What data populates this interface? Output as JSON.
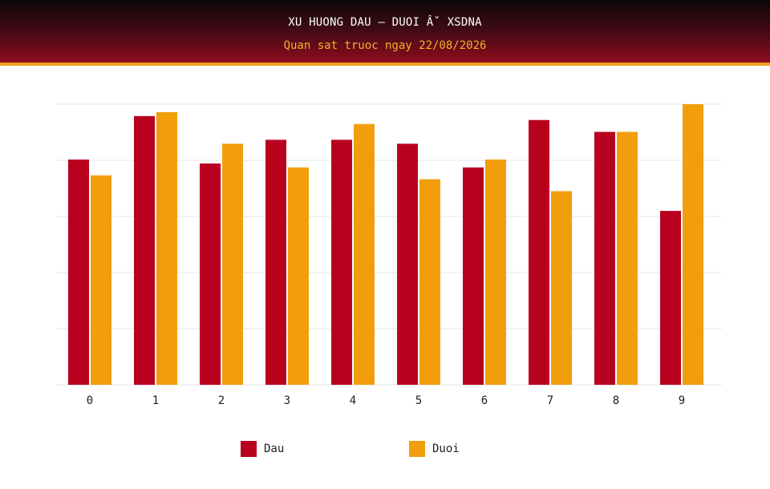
{
  "header": {
    "title": "XU HUONG DAU – DUOI Âˇ XSDNA",
    "subtitle": "Quan sat truoc ngay 22/08/2026"
  },
  "colors": {
    "dau": "#b8001f",
    "duoi": "#f29e0c",
    "grid": "#e6e6e6"
  },
  "chart_data": {
    "type": "bar",
    "categories": [
      "0",
      "1",
      "2",
      "3",
      "4",
      "5",
      "6",
      "7",
      "8",
      "9"
    ],
    "series": [
      {
        "name": "Dau",
        "values": [
          57,
          68,
          56,
          62,
          62,
          61,
          55,
          67,
          64,
          44
        ]
      },
      {
        "name": "Duoi",
        "values": [
          53,
          69,
          61,
          55,
          66,
          52,
          57,
          49,
          64,
          71
        ]
      }
    ],
    "ylim": [
      0,
      71
    ],
    "grid": true,
    "legend_position": "bottom",
    "ytick_labels_shown": false
  }
}
